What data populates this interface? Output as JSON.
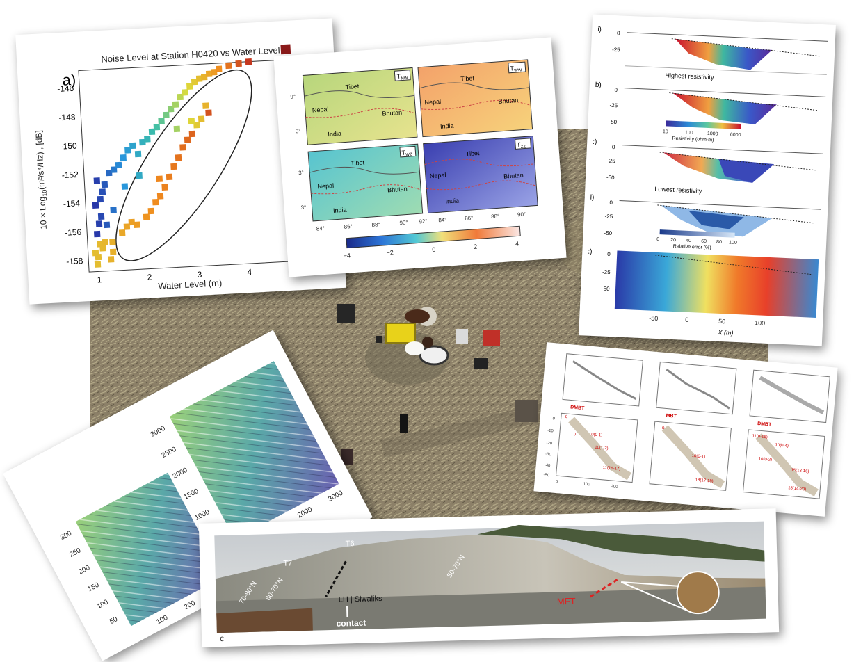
{
  "noise_chart": {
    "panel_letter": "a)",
    "title": "Noise Level at Station H0420 vs Water Level",
    "ylabel_prefix": "10 × Log",
    "ylabel_sub": "10",
    "ylabel_suffix": "(m²/s⁴/Hz) , [dB]",
    "xlabel": "Water Level (m)",
    "yticks": [
      "-146",
      "-148",
      "-150",
      "-152",
      "-154",
      "-156",
      "-158"
    ],
    "xticks": [
      "1",
      "2",
      "3",
      "4"
    ]
  },
  "chart_data": {
    "type": "scatter",
    "title": "Noise Level at Station H0420 vs Water Level",
    "xlabel": "Water Level (m)",
    "ylabel": "10 × Log10(m²/s⁴/Hz) , [dB]",
    "xlim": [
      0.8,
      4.8
    ],
    "ylim": [
      -158.8,
      -144.8
    ],
    "series": [
      {
        "values": [
          [
            0.95,
            -157.5
          ],
          [
            1.0,
            -157.8
          ],
          [
            1.05,
            -156.9
          ],
          [
            1.0,
            -156.2
          ],
          [
            1.1,
            -157.2
          ],
          [
            1.15,
            -156.8
          ],
          [
            1.05,
            -155.5
          ],
          [
            1.1,
            -155.0
          ],
          [
            1.0,
            -154.2
          ],
          [
            1.1,
            -153.8
          ],
          [
            1.15,
            -153.3
          ],
          [
            1.05,
            -152.5
          ],
          [
            1.2,
            -152.8
          ],
          [
            1.3,
            -152.0
          ],
          [
            1.4,
            -151.8
          ],
          [
            1.5,
            -151.5
          ],
          [
            1.6,
            -151.0
          ],
          [
            1.7,
            -150.5
          ],
          [
            1.8,
            -150.2
          ],
          [
            1.9,
            -150.8
          ],
          [
            2.0,
            -150.0
          ],
          [
            2.1,
            -149.8
          ],
          [
            2.2,
            -149.3
          ],
          [
            2.3,
            -149.0
          ],
          [
            2.4,
            -148.6
          ],
          [
            2.5,
            -148.2
          ],
          [
            2.6,
            -147.8
          ],
          [
            2.7,
            -147.5
          ],
          [
            2.8,
            -147.0
          ],
          [
            2.9,
            -146.7
          ],
          [
            3.0,
            -146.3
          ],
          [
            3.1,
            -146.0
          ],
          [
            3.2,
            -145.8
          ],
          [
            3.3,
            -145.7
          ],
          [
            3.4,
            -145.5
          ],
          [
            3.5,
            -145.4
          ],
          [
            3.6,
            -145.2
          ],
          [
            3.8,
            -145.0
          ],
          [
            4.0,
            -144.9
          ],
          [
            4.2,
            -144.8
          ],
          [
            1.3,
            -157.5
          ],
          [
            1.3,
            -156.8
          ],
          [
            1.25,
            -158.0
          ],
          [
            1.5,
            -156.2
          ],
          [
            1.6,
            -155.8
          ],
          [
            1.7,
            -155.5
          ],
          [
            1.8,
            -155.7
          ],
          [
            2.0,
            -155.2
          ],
          [
            2.1,
            -154.8
          ],
          [
            2.2,
            -154.2
          ],
          [
            2.3,
            -153.8
          ],
          [
            2.4,
            -153.2
          ],
          [
            2.5,
            -152.5
          ],
          [
            2.6,
            -151.8
          ],
          [
            2.7,
            -151.2
          ],
          [
            2.8,
            -150.5
          ],
          [
            2.9,
            -150.0
          ],
          [
            3.0,
            -149.6
          ],
          [
            3.1,
            -149.0
          ],
          [
            3.2,
            -148.6
          ],
          [
            3.3,
            -147.7
          ],
          [
            3.35,
            -148.2
          ],
          [
            3.0,
            -148.7
          ],
          [
            2.7,
            -149.2
          ],
          [
            2.3,
            -152.6
          ],
          [
            1.9,
            -152.3
          ],
          [
            1.6,
            -153.0
          ],
          [
            1.35,
            -154.6
          ],
          [
            1.2,
            -155.6
          ],
          [
            0.98,
            -158.3
          ]
        ]
      }
    ]
  },
  "tmap": {
    "panels": [
      {
        "tag": "T",
        "sub": "NW"
      },
      {
        "tag": "T",
        "sub": "WW"
      },
      {
        "tag": "T",
        "sub": "WZ"
      },
      {
        "tag": "T",
        "sub": "ZZ"
      }
    ],
    "labels": {
      "tibet": "Tibet",
      "nepal": "Nepal",
      "bhutan": "Bhutan",
      "india": "India"
    },
    "xticks": [
      "84°",
      "86°",
      "88°",
      "90°",
      "92°",
      "84°",
      "86°",
      "88°",
      "90°"
    ],
    "lat_ticks": [
      "9°",
      "3°",
      "3°",
      "3°"
    ],
    "colorbar_ticks": [
      "−4",
      "−2",
      "0",
      "2",
      "4"
    ]
  },
  "resistivity": {
    "panel_letters": [
      "i)",
      "b)",
      ":)",
      "l)",
      ":)"
    ],
    "yticks": [
      "0",
      "-25",
      "-50"
    ],
    "caption_high": "Highest resistivity",
    "caption_low": "Lowest resistivity",
    "cbar1_ticks": [
      "10",
      "100",
      "1000",
      "6000"
    ],
    "cbar1_label": "Resistivity (ohm-m)",
    "cbar2_ticks": [
      "0",
      "20",
      "40",
      "60",
      "80",
      "100"
    ],
    "cbar2_label": "Relative error (%)",
    "xticks": [
      "-50",
      "0",
      "50",
      "100"
    ],
    "xlabel": "X (m)"
  },
  "dem": {
    "left_yticks": [
      "300",
      "250",
      "200",
      "150",
      "100",
      "50"
    ],
    "left_xticks": [
      "100",
      "200",
      "300"
    ],
    "right_yticks": [
      "3000",
      "2500",
      "2000",
      "1500",
      "1000",
      "500"
    ],
    "right_xticks": [
      "1000",
      "2000",
      "3000"
    ]
  },
  "profiles": {
    "top_tags": [
      "DMBT",
      "MBT",
      "DMBT"
    ],
    "bottom_tags_a": [
      "0",
      "0",
      "10(0-1)",
      "10(1-2)",
      "11(16-17)"
    ],
    "bottom_tags_b": [
      "0",
      "10(0-1)",
      "18(17-18)"
    ],
    "bottom_tags_c": [
      "11(0-16)",
      "10(0-4)",
      "10(0-2)",
      "15(13-16)",
      "18(14-20)"
    ],
    "yticks": [
      "0",
      "-10",
      "-20",
      "-30",
      "-40",
      "-50"
    ],
    "xticks": [
      "0",
      "100",
      "200"
    ]
  },
  "outcrop": {
    "labels": [
      "T6",
      "T7",
      "70-80°N",
      "60-70°N",
      "50-70°N",
      "LH",
      "Siwaliks",
      "contact",
      "MFT"
    ],
    "panel_letter": "c"
  },
  "colors": {
    "field_bg": "#8a7f66",
    "lesser_himalaya_red": "#cc2222",
    "plot_frame": "#333333"
  }
}
